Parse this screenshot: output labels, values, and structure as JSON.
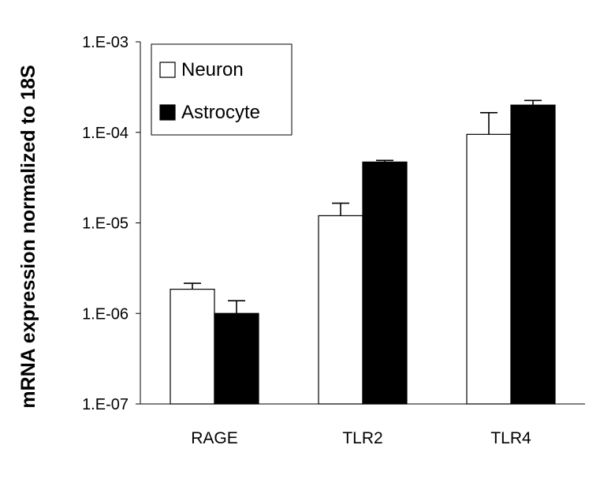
{
  "chart_data": {
    "type": "bar",
    "title": "",
    "xlabel": "",
    "ylabel": "mRNA expression normalized to 18S",
    "yscale": "log",
    "ylim": [
      1e-07,
      0.001
    ],
    "y_tick_values": [
      1e-07,
      1e-06,
      1e-05,
      0.0001,
      0.001
    ],
    "y_tick_labels": [
      "1.E-07",
      "1.E-06",
      "1.E-05",
      "1.E-04",
      "1.E-03"
    ],
    "categories": [
      "RAGE",
      "TLR2",
      "TLR4"
    ],
    "series": [
      {
        "name": "Neuron",
        "color": "#ffffff",
        "values": [
          1.85e-06,
          1.2e-05,
          9.5e-05
        ],
        "error_upper": [
          2.15e-06,
          1.65e-05,
          0.000165
        ]
      },
      {
        "name": "Astrocyte",
        "color": "#000000",
        "values": [
          1e-06,
          4.7e-05,
          0.0002
        ],
        "error_upper": [
          1.38e-06,
          4.9e-05,
          0.000225
        ]
      }
    ],
    "legend_position": "top-left",
    "grid": false
  }
}
